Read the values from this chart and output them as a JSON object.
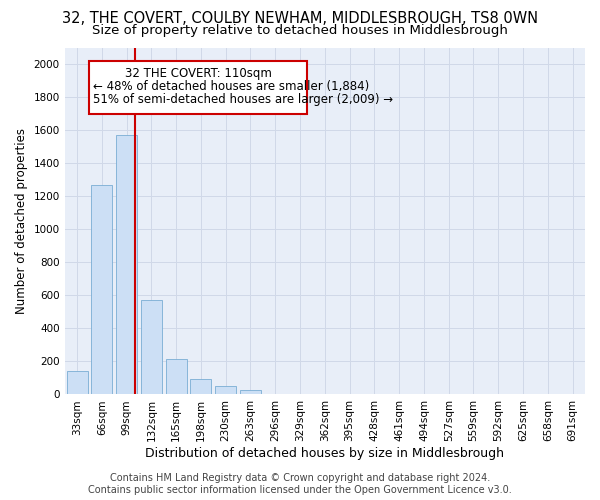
{
  "title": "32, THE COVERT, COULBY NEWHAM, MIDDLESBROUGH, TS8 0WN",
  "subtitle": "Size of property relative to detached houses in Middlesbrough",
  "xlabel": "Distribution of detached houses by size in Middlesbrough",
  "ylabel": "Number of detached properties",
  "footer_line1": "Contains HM Land Registry data © Crown copyright and database right 2024.",
  "footer_line2": "Contains public sector information licensed under the Open Government Licence v3.0.",
  "bar_labels": [
    "33sqm",
    "66sqm",
    "99sqm",
    "132sqm",
    "165sqm",
    "198sqm",
    "230sqm",
    "263sqm",
    "296sqm",
    "329sqm",
    "362sqm",
    "395sqm",
    "428sqm",
    "461sqm",
    "494sqm",
    "527sqm",
    "559sqm",
    "592sqm",
    "625sqm",
    "658sqm",
    "691sqm"
  ],
  "bar_values": [
    140,
    1265,
    1570,
    570,
    215,
    95,
    50,
    30,
    5,
    0,
    0,
    0,
    0,
    0,
    0,
    0,
    0,
    0,
    0,
    0,
    0
  ],
  "bar_color": "#ccdff5",
  "bar_edge_color": "#7aadd4",
  "annotation_line1": "32 THE COVERT: 110sqm",
  "annotation_line2": "← 48% of detached houses are smaller (1,884)",
  "annotation_line3": "51% of semi-detached houses are larger (2,009) →",
  "vline_color": "#cc0000",
  "annotation_box_color": "#ffffff",
  "annotation_box_edge": "#cc0000",
  "ylim": [
    0,
    2100
  ],
  "yticks": [
    0,
    200,
    400,
    600,
    800,
    1000,
    1200,
    1400,
    1600,
    1800,
    2000
  ],
  "bg_color": "#e8eef8",
  "grid_color": "#d0d8e8",
  "title_fontsize": 10.5,
  "subtitle_fontsize": 9.5,
  "xlabel_fontsize": 9,
  "ylabel_fontsize": 8.5,
  "tick_fontsize": 7.5,
  "annot_fontsize": 8.5,
  "footer_fontsize": 7
}
